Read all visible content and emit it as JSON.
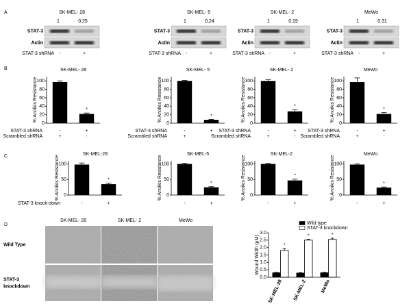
{
  "panel_labels": [
    "A",
    "B",
    "C",
    "D"
  ],
  "blots": [
    {
      "cell_line": "SK-MEL- 28",
      "ratios": [
        1,
        0.25
      ],
      "rows": [
        "STAT-3",
        "Actin"
      ],
      "condition": {
        "name": "STAT-3  shRNA",
        "values": [
          "-",
          "+"
        ]
      }
    },
    {
      "cell_line": "SK-MEL- 5",
      "ratios": [
        1,
        0.24
      ],
      "rows": [
        "STAT-3",
        "Actin"
      ],
      "condition": {
        "name": "STAT-3  shRNA",
        "values": [
          "-",
          "+"
        ]
      }
    },
    {
      "cell_line": "SK-MEL- 2",
      "ratios": [
        1,
        0.19
      ],
      "rows": [
        "STAT-3",
        "Actin"
      ],
      "condition": {
        "name": "STAT-3  shRNA",
        "values": [
          "-",
          "+"
        ]
      }
    },
    {
      "cell_line": "MeWo",
      "ratios": [
        1,
        0.31
      ],
      "rows": [
        "STAT-3",
        "Actin"
      ],
      "condition": {
        "name": "STAT-3  shRNA",
        "values": [
          "-",
          "+"
        ]
      }
    }
  ],
  "micrographs": {
    "columns": [
      "SK-MEL- 28",
      "SK-MEL- 2",
      "MeWo"
    ],
    "rows": [
      [
        "Wild Type"
      ],
      [
        "STAT-3",
        "knockdown"
      ]
    ]
  },
  "chart_data": [
    {
      "type": "bar",
      "title": "SK-MEL- 28",
      "y_label": "% Anoikis Resistance",
      "categories": [
        null,
        null
      ],
      "values": [
        97,
        22
      ],
      "errors": [
        3,
        2
      ],
      "annotation": "*",
      "color": "#000000",
      "ylim": [
        0,
        110
      ],
      "yticks": [
        0,
        20,
        40,
        60,
        80,
        100
      ],
      "conditions": [
        {
          "name": "STAT-3  shRNA",
          "values": [
            "-",
            "+"
          ]
        },
        {
          "name": "Scrambled shRNA",
          "values": [
            "+",
            "-"
          ]
        }
      ]
    },
    {
      "type": "bar",
      "title": "SK-MEL- 5",
      "y_label": "% Anoikis Resistance",
      "categories": [
        null,
        null
      ],
      "values": [
        100,
        8
      ],
      "errors": [
        1,
        1
      ],
      "annotation": "*",
      "color": "#000000",
      "ylim": [
        0,
        110
      ],
      "yticks": [
        0,
        20,
        40,
        60,
        80,
        100
      ],
      "conditions": [
        {
          "name": "STAT-3  shRNA",
          "values": [
            "-",
            "+"
          ]
        },
        {
          "name": "Scrambled shRNA",
          "values": [
            "+",
            "-"
          ]
        }
      ]
    },
    {
      "type": "bar",
      "title": "SK-MEL- 2",
      "y_label": "% Anoikis Resistance",
      "categories": [
        null,
        null
      ],
      "values": [
        100,
        28
      ],
      "errors": [
        3,
        4
      ],
      "annotation": "*",
      "color": "#000000",
      "ylim": [
        0,
        110
      ],
      "yticks": [
        0,
        20,
        40,
        60,
        80,
        100
      ],
      "conditions": [
        {
          "name": "STAT-3  shRNA",
          "values": [
            "-",
            "+"
          ]
        },
        {
          "name": "Scrambled shRNA",
          "values": [
            "+",
            "-"
          ]
        }
      ]
    },
    {
      "type": "bar",
      "title": "MeWo",
      "y_label": "% Anoikis Resistance",
      "categories": [
        null,
        null
      ],
      "values": [
        97,
        22
      ],
      "errors": [
        10,
        3
      ],
      "annotation": "*",
      "color": "#000000",
      "ylim": [
        0,
        110
      ],
      "yticks": [
        0,
        20,
        40,
        60,
        80,
        100
      ],
      "conditions": [
        {
          "name": "STAT-3  shRNA",
          "values": [
            "-",
            "+"
          ]
        },
        {
          "name": "Scrambled shRNA",
          "values": [
            "+",
            "-"
          ]
        }
      ]
    },
    {
      "type": "bar",
      "title": "SK-MEL-28",
      "y_label": "% Anoikis Resistance",
      "categories": [
        null,
        null
      ],
      "values": [
        98,
        35
      ],
      "errors": [
        5,
        3
      ],
      "annotation": "*",
      "color": "#000000",
      "ylim": [
        0,
        110
      ],
      "yticks": [
        0,
        50,
        100
      ],
      "conditions": [
        {
          "name": "STAT-3 knock-down",
          "values": [
            "-",
            "+"
          ]
        }
      ]
    },
    {
      "type": "bar",
      "title": "SK-MEL-5",
      "y_label": "% Anoikis Resistance",
      "categories": [
        null,
        null
      ],
      "values": [
        100,
        25
      ],
      "errors": [
        2,
        2
      ],
      "annotation": "*",
      "color": "#000000",
      "ylim": [
        0,
        110
      ],
      "yticks": [
        0,
        50,
        100
      ],
      "conditions": [
        {
          "values": [
            "-",
            "+"
          ]
        }
      ]
    },
    {
      "type": "bar",
      "title": "SK-MEL-2",
      "y_label": "% Anoikis Resistance",
      "categories": [
        null,
        null
      ],
      "values": [
        100,
        47
      ],
      "errors": [
        2,
        4
      ],
      "annotation": "*",
      "color": "#000000",
      "ylim": [
        0,
        110
      ],
      "yticks": [
        0,
        50,
        100
      ],
      "conditions": [
        {
          "values": [
            "-",
            "+"
          ]
        }
      ]
    },
    {
      "type": "bar",
      "title": "MeWo",
      "y_label": "% Anoikis Resistance",
      "categories": [
        null,
        null
      ],
      "values": [
        98,
        24
      ],
      "errors": [
        2,
        2
      ],
      "annotation": "*",
      "color": "#000000",
      "ylim": [
        0,
        110
      ],
      "yticks": [
        0,
        50,
        100
      ],
      "conditions": [
        {
          "values": [
            "-",
            "+"
          ]
        }
      ]
    },
    {
      "type": "bar",
      "y_label": "Wound Width (μM)",
      "categories": [
        "SK-MEL-28",
        "SK-MEL-2",
        "MeWo"
      ],
      "annotation": "*",
      "legend": "top-right",
      "series": [
        {
          "name": "Wild type",
          "color": "#000000",
          "values": [
            0.3,
            0.28,
            0.3
          ],
          "errors": [
            0.03,
            0.03,
            0.03
          ]
        },
        {
          "name": "STAT-3 knockdown",
          "color": "#ffffff",
          "values": [
            1.8,
            2.5,
            2.55
          ],
          "errors": [
            0.12,
            0.06,
            0.08
          ]
        }
      ],
      "ylim": [
        0,
        3
      ],
      "yticks": [
        {
          "value": 0,
          "label": "0.0"
        },
        {
          "value": 0.5,
          "label": "0.5"
        },
        {
          "value": 1,
          "label": "1.0"
        },
        {
          "value": 1.5,
          "label": "1.5"
        },
        {
          "value": 2,
          "label": "2.0"
        },
        {
          "value": 2.5,
          "label": "2.5"
        },
        {
          "value": 3,
          "label": "3.0"
        }
      ]
    }
  ]
}
